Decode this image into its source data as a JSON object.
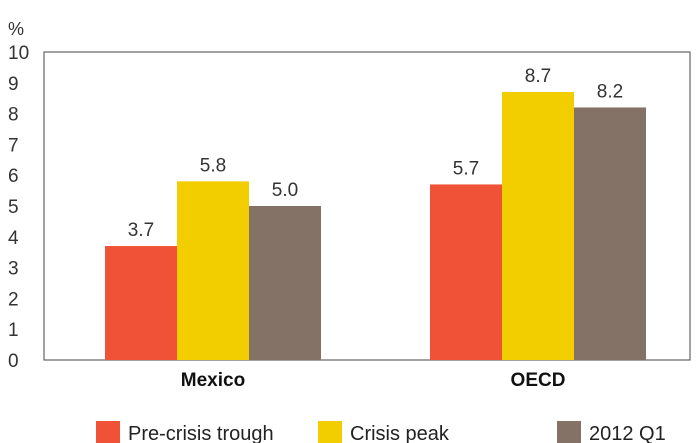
{
  "chart_data": {
    "type": "bar",
    "y_unit": "%",
    "categories": [
      "Mexico",
      "OECD"
    ],
    "series": [
      {
        "name": "Pre-crisis trough",
        "values": [
          3.7,
          5.7
        ],
        "labels": [
          "3.7",
          "5.7"
        ],
        "color": "#EF5236"
      },
      {
        "name": "Crisis peak",
        "values": [
          5.8,
          8.7
        ],
        "labels": [
          "5.8",
          "8.7"
        ],
        "color": "#F2CD00"
      },
      {
        "name": "2012 Q1",
        "values": [
          5.0,
          8.2
        ],
        "labels": [
          "5.0",
          "8.2"
        ],
        "color": "#857266"
      }
    ],
    "ylim": [
      0,
      10
    ],
    "yticks": [
      "0",
      "1",
      "2",
      "3",
      "4",
      "5",
      "6",
      "7",
      "8",
      "9",
      "10"
    ],
    "grid": false,
    "legend_position": "bottom"
  }
}
